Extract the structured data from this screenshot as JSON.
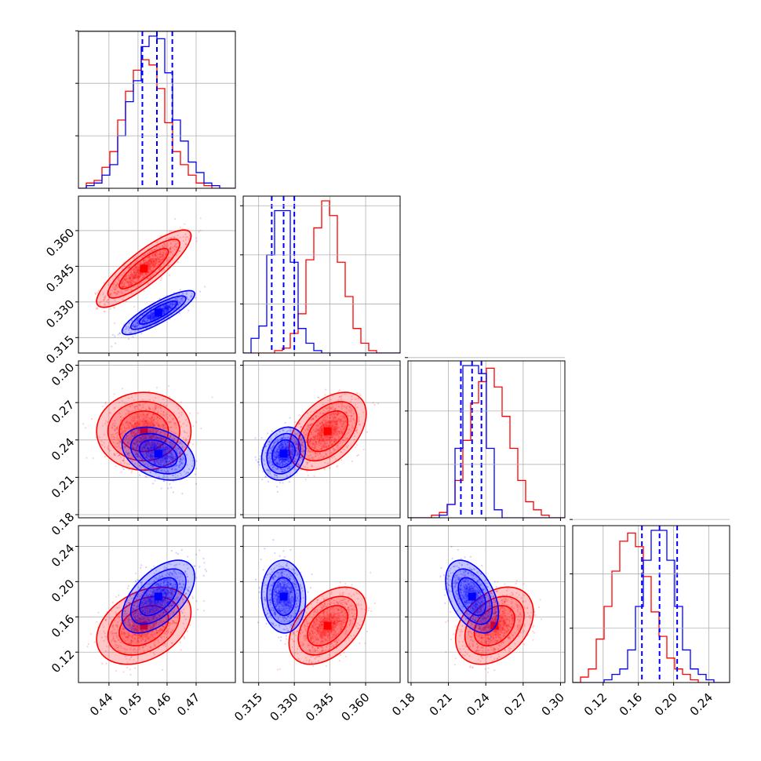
{
  "chart_data": {
    "type": "corner",
    "title": "",
    "grid": true,
    "legend": "none",
    "series": [
      {
        "name": "",
        "color": "#0000ff"
      },
      {
        "name": "",
        "color": "#ff0000"
      }
    ],
    "parameters": [
      {
        "xlim": [
          0.4295,
          0.4835
        ],
        "ticks": [
          "0.44",
          "0.45",
          "0.46",
          "0.47"
        ],
        "tick_values": [
          0.44,
          0.45,
          0.46,
          0.47
        ]
      },
      {
        "xlim": [
          0.3085,
          0.3745
        ],
        "ticks": [
          "0.315",
          "0.330",
          "0.345",
          "0.360"
        ],
        "tick_values": [
          0.315,
          0.33,
          0.345,
          0.36
        ]
      },
      {
        "xlim": [
          0.1775,
          0.3035
        ],
        "ticks": [
          "0.18",
          "0.21",
          "0.24",
          "0.27",
          "0.30"
        ],
        "tick_values": [
          0.18,
          0.21,
          0.24,
          0.27,
          0.3
        ]
      },
      {
        "xlim": [
          0.0855,
          0.2635
        ],
        "ticks": [
          "0.12",
          "0.16",
          "0.20",
          "0.24"
        ],
        "tick_values": [
          0.12,
          0.16,
          0.2,
          0.24
        ]
      }
    ],
    "quantiles_blue": [
      [
        0.4515,
        0.4565,
        0.4618
      ],
      [
        0.3205,
        0.3255,
        0.33
      ],
      [
        0.22,
        0.229,
        0.2365
      ],
      [
        0.164,
        0.184,
        0.204
      ]
    ],
    "means": {
      "blue": [
        0.457,
        0.3255,
        0.229,
        0.183
      ],
      "red": [
        0.452,
        0.344,
        0.247,
        0.15
      ]
    },
    "stds": {
      "blue": [
        0.005,
        0.0037,
        0.0085,
        0.0165
      ],
      "red": [
        0.0065,
        0.0065,
        0.0125,
        0.0175
      ]
    },
    "correlations": {
      "blue": {
        "0-1": 0.85,
        "0-2": -0.35,
        "0-3": 0.55,
        "1-2": 0.2,
        "1-3": -0.05,
        "2-3": -0.45
      },
      "red": {
        "0-1": 0.85,
        "0-2": 0.0,
        "0-3": 0.35,
        "1-2": 0.45,
        "1-3": 0.45,
        "2-3": 0.35
      }
    },
    "histograms": {
      "blue": [
        [
          0,
          1,
          2,
          5,
          9,
          20,
          33,
          41,
          54,
          58,
          57,
          44,
          26,
          18,
          10,
          6,
          2,
          1,
          0,
          0
        ],
        [
          0,
          6,
          11,
          40,
          58,
          58,
          37,
          10,
          4,
          1,
          0,
          0,
          0,
          0,
          0,
          0,
          0,
          0,
          0,
          0
        ],
        [
          0,
          0,
          0,
          0,
          1,
          5,
          26,
          57,
          57,
          54,
          26,
          3,
          0,
          0,
          0,
          0,
          0,
          0,
          0,
          0
        ],
        [
          0,
          0,
          0,
          0,
          1,
          3,
          5,
          12,
          28,
          45,
          56,
          56,
          45,
          28,
          12,
          5,
          3,
          1,
          0,
          0
        ]
      ],
      "red": [
        [
          0,
          2,
          3,
          8,
          14,
          26,
          37,
          45,
          49,
          47,
          38,
          25,
          14,
          9,
          5,
          2,
          1,
          0,
          0,
          0
        ],
        [
          0,
          0,
          0,
          0,
          1,
          2,
          8,
          16,
          38,
          51,
          62,
          56,
          37,
          23,
          10,
          4,
          1,
          0,
          0,
          0
        ],
        [
          0,
          0,
          0,
          1,
          2,
          5,
          14,
          29,
          43,
          51,
          56,
          49,
          38,
          26,
          14,
          6,
          3,
          1,
          0,
          0
        ],
        [
          0,
          2,
          5,
          16,
          28,
          41,
          52,
          55,
          50,
          39,
          26,
          17,
          9,
          5,
          3,
          1,
          0,
          0,
          0,
          0
        ]
      ]
    }
  }
}
